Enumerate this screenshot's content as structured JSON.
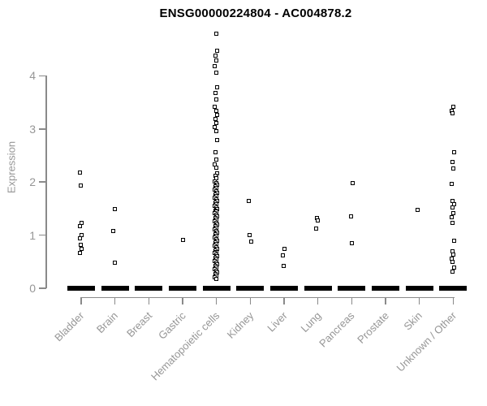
{
  "title": "ENSG00000224804 - AC004878.2",
  "colors": {
    "background": "#ffffff",
    "title": "#000000",
    "axis_line": "#8a8a8a",
    "axis_text": "#969696",
    "marker": "#000000",
    "zero_dash": "#000000"
  },
  "chart_data": {
    "type": "scatter",
    "subtype": "strip-plot",
    "title": "ENSG00000224804 - AC004878.2",
    "xlabel": "",
    "ylabel": "Expression",
    "ylim": [
      0,
      4.9
    ],
    "yticks": [
      0,
      1,
      2,
      3,
      4
    ],
    "ytick_labels": [
      "0",
      "1",
      "2",
      "3",
      "4"
    ],
    "grid": false,
    "legend": false,
    "marker": "open-square",
    "zero_stack_note": "every category has many overlapping samples at expression 0, drawn as a thick black dash on the baseline",
    "categories": [
      {
        "label": "Bladder",
        "zero_dash": true,
        "values": [
          2.17,
          1.92,
          1.22,
          1.16,
          0.99,
          0.93,
          0.81,
          0.73,
          0.66
        ]
      },
      {
        "label": "Brain",
        "zero_dash": true,
        "values": [
          1.48,
          1.07,
          0.48
        ]
      },
      {
        "label": "Breast",
        "zero_dash": true,
        "values": []
      },
      {
        "label": "Gastric",
        "zero_dash": true,
        "values": [
          0.9
        ]
      },
      {
        "label": "Hematopoietic cells",
        "zero_dash": true,
        "values": [
          4.79,
          4.46,
          4.37,
          4.28,
          4.18,
          4.05,
          3.77,
          3.67,
          3.55,
          3.41,
          3.33,
          3.26,
          3.18,
          3.1,
          3.02,
          2.95,
          2.78,
          2.55,
          2.42,
          2.33,
          2.27,
          2.16,
          2.11,
          2.06,
          2.0,
          1.97,
          1.94,
          1.91,
          1.88,
          1.85,
          1.82,
          1.79,
          1.76,
          1.73,
          1.7,
          1.67,
          1.64,
          1.61,
          1.58,
          1.55,
          1.52,
          1.49,
          1.46,
          1.43,
          1.4,
          1.37,
          1.34,
          1.31,
          1.28,
          1.25,
          1.22,
          1.19,
          1.16,
          1.13,
          1.1,
          1.07,
          1.04,
          1.01,
          0.98,
          0.95,
          0.92,
          0.89,
          0.86,
          0.83,
          0.8,
          0.77,
          0.74,
          0.71,
          0.68,
          0.65,
          0.62,
          0.59,
          0.56,
          0.53,
          0.5,
          0.47,
          0.44,
          0.41,
          0.38,
          0.35,
          0.32,
          0.29,
          0.26,
          0.23,
          0.2,
          0.17
        ]
      },
      {
        "label": "Kidney",
        "zero_dash": true,
        "values": [
          1.63,
          1.0,
          0.87
        ]
      },
      {
        "label": "Liver",
        "zero_dash": true,
        "values": [
          0.73,
          0.61,
          0.42
        ]
      },
      {
        "label": "Lung",
        "zero_dash": true,
        "values": [
          1.31,
          1.27,
          1.12
        ]
      },
      {
        "label": "Pancreas",
        "zero_dash": true,
        "values": [
          1.97,
          1.35,
          0.84
        ]
      },
      {
        "label": "Prostate",
        "zero_dash": true,
        "values": []
      },
      {
        "label": "Skin",
        "zero_dash": true,
        "values": [
          1.47
        ]
      },
      {
        "label": "Unknown / Other",
        "zero_dash": true,
        "values": [
          3.41,
          3.33,
          3.29,
          2.55,
          2.37,
          2.25,
          1.96,
          1.63,
          1.57,
          1.52,
          1.4,
          1.33,
          1.22,
          0.89,
          0.69,
          0.62,
          0.55,
          0.49,
          0.38,
          0.31
        ]
      }
    ]
  }
}
